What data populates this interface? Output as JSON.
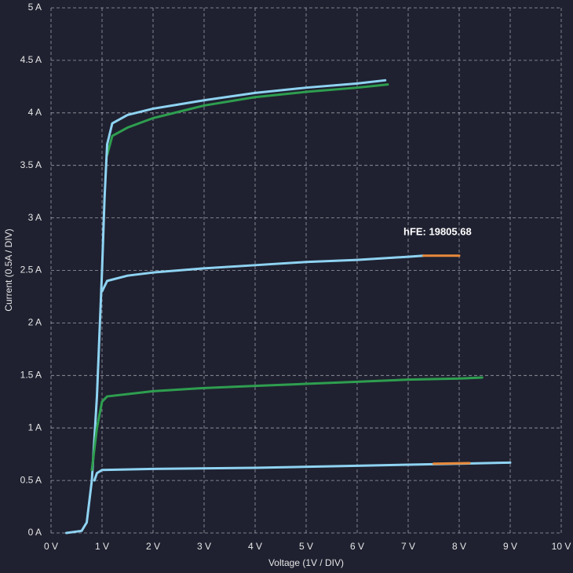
{
  "chart_data": {
    "type": "line",
    "xlabel": "Voltage (1V / DIV)",
    "ylabel": "Current (0.5A / DIV)",
    "annotation": "hFE: 19805.68",
    "xlim": [
      0,
      10
    ],
    "ylim": [
      0,
      5
    ],
    "xticks": [
      {
        "value": 0,
        "label": "0 V"
      },
      {
        "value": 1,
        "label": "1 V"
      },
      {
        "value": 2,
        "label": "2 V"
      },
      {
        "value": 3,
        "label": "3 V"
      },
      {
        "value": 4,
        "label": "4 V"
      },
      {
        "value": 5,
        "label": "5 V"
      },
      {
        "value": 6,
        "label": "6 V"
      },
      {
        "value": 7,
        "label": "7 V"
      },
      {
        "value": 8,
        "label": "8 V"
      },
      {
        "value": 9,
        "label": "9 V"
      },
      {
        "value": 10,
        "label": "10 V"
      }
    ],
    "yticks": [
      {
        "value": 0,
        "label": "0 A"
      },
      {
        "value": 0.5,
        "label": "0.5 A"
      },
      {
        "value": 1,
        "label": "1 A"
      },
      {
        "value": 1.5,
        "label": "1.5 A"
      },
      {
        "value": 2,
        "label": "2 A"
      },
      {
        "value": 2.5,
        "label": "2.5 A"
      },
      {
        "value": 3,
        "label": "3 A"
      },
      {
        "value": 3.5,
        "label": "3.5 A"
      },
      {
        "value": 4,
        "label": "4 A"
      },
      {
        "value": 4.5,
        "label": "4.5 A"
      },
      {
        "value": 5,
        "label": "5 A"
      }
    ],
    "grid": true,
    "series": [
      {
        "color": "#2e9e4f",
        "x": [
          1.1,
          1.2,
          1.5,
          2,
          3,
          4,
          5,
          6,
          6.6
        ],
        "values": [
          3.6,
          3.78,
          3.86,
          3.95,
          4.07,
          4.15,
          4.2,
          4.24,
          4.27
        ]
      },
      {
        "color": "#8fd3f2",
        "x": [
          0.3,
          0.6,
          0.7,
          0.8,
          0.9,
          1.0,
          1.05,
          1.1,
          1.2,
          1.5,
          2,
          3,
          4,
          5,
          6,
          6.55
        ],
        "values": [
          0,
          0.02,
          0.1,
          0.5,
          1.3,
          2.5,
          3.2,
          3.7,
          3.9,
          3.98,
          4.04,
          4.12,
          4.19,
          4.24,
          4.28,
          4.31
        ]
      },
      {
        "color": "#8fd3f2",
        "x": [
          1.0,
          1.1,
          1.5,
          2,
          3,
          4,
          5,
          6,
          7,
          7.3
        ],
        "values": [
          2.3,
          2.4,
          2.45,
          2.48,
          2.52,
          2.55,
          2.58,
          2.6,
          2.63,
          2.64
        ]
      },
      {
        "color": "#e8893a",
        "x": [
          7.3,
          8.0
        ],
        "values": [
          2.64,
          2.64
        ]
      },
      {
        "color": "#2e9e4f",
        "x": [
          0.8,
          0.9,
          1.0,
          1.1,
          2,
          3,
          4,
          5,
          6,
          7,
          8,
          8.45
        ],
        "values": [
          0.6,
          1.0,
          1.25,
          1.3,
          1.35,
          1.38,
          1.4,
          1.42,
          1.44,
          1.46,
          1.47,
          1.48
        ]
      },
      {
        "color": "#8fd3f2",
        "x": [
          0.85,
          0.9,
          1.0,
          2,
          4,
          6,
          8,
          9
        ],
        "values": [
          0.5,
          0.57,
          0.6,
          0.61,
          0.62,
          0.64,
          0.66,
          0.67
        ]
      },
      {
        "color": "#e8893a",
        "x": [
          7.5,
          8.2
        ],
        "values": [
          0.66,
          0.665
        ]
      }
    ]
  }
}
